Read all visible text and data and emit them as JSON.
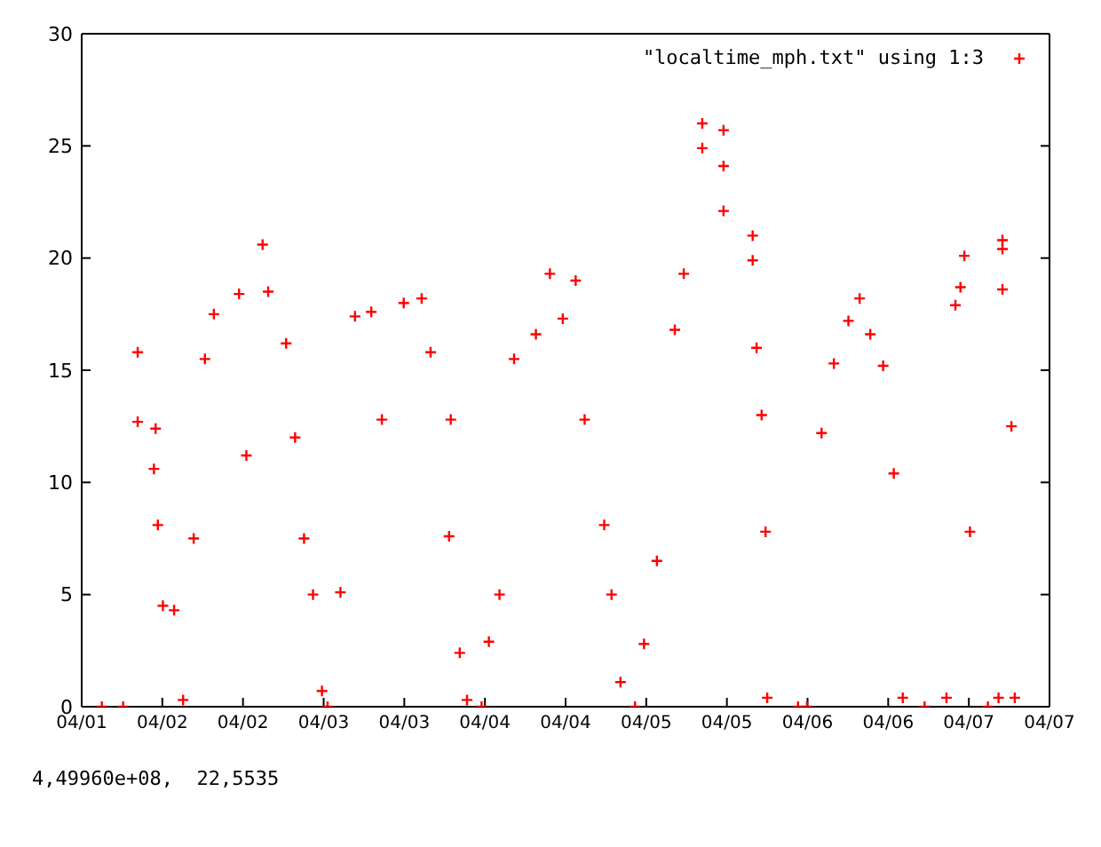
{
  "chart_data": {
    "type": "scatter",
    "x": [
      "--04-01T15:00",
      "--04-01T18:10",
      "--04-01T20:20",
      "--04-01T20:20",
      "--04-01T22:45",
      "--04-01T23:00",
      "--04-01T23:20",
      "--04-02T00:05",
      "--04-02T01:45",
      "--04-02T03:05",
      "--04-02T04:40",
      "--04-02T06:20",
      "--04-02T07:40",
      "--04-02T11:25",
      "--04-02T12:30",
      "--04-02T14:55",
      "--04-02T15:45",
      "--04-02T18:25",
      "--04-02T19:45",
      "--04-02T21:05",
      "--04-02T22:25",
      "--04-02T23:45",
      "--04-03T00:35",
      "--04-03T02:30",
      "--04-03T04:40",
      "--04-03T07:05",
      "--04-03T08:40",
      "--04-03T11:55",
      "--04-03T14:35",
      "--04-03T15:55",
      "--04-03T18:40",
      "--04-03T18:55",
      "--04-03T20:15",
      "--04-03T21:20",
      "--04-03T23:30",
      "--04-04T00:35",
      "--04-04T02:10",
      "--04-04T04:20",
      "--04-04T07:35",
      "--04-04T09:40",
      "--04-04T11:35",
      "--04-04T13:30",
      "--04-04T14:50",
      "--04-04T17:45",
      "--04-04T18:50",
      "--04-04T20:10",
      "--04-04T22:20",
      "--04-04T23:40",
      "--04-05T01:35",
      "--04-05T04:15",
      "--04-05T05:35",
      "--04-05T08:20",
      "--04-05T08:20",
      "--04-05T11:30",
      "--04-05T11:30",
      "--04-05T11:30",
      "--04-05T15:50",
      "--04-05T15:50",
      "--04-05T16:25",
      "--04-05T17:10",
      "--04-05T17:45",
      "--04-05T18:00",
      "--04-05T22:35",
      "--04-05T23:55",
      "--04-06T02:05",
      "--04-06T03:55",
      "--04-06T06:05",
      "--04-06T07:45",
      "--04-06T09:20",
      "--04-06T11:15",
      "--04-06T12:50",
      "--04-06T14:10",
      "--04-06T17:25",
      "--04-06T20:40",
      "--04-06T22:00",
      "--04-06T22:45",
      "--04-06T23:20",
      "--04-07T00:10",
      "--04-07T02:50",
      "--04-07T04:25",
      "--04-07T05:00",
      "--04-07T05:00",
      "--04-07T05:00",
      "--04-07T06:20",
      "--04-07T06:50"
    ],
    "series": [
      {
        "name": "\"localtime_mph.txt\" using 1:3",
        "color": "#ff0000",
        "values": [
          0,
          0,
          15.8,
          12.7,
          10.6,
          12.4,
          8.1,
          4.5,
          4.3,
          0.3,
          7.5,
          15.5,
          17.5,
          18.4,
          11.2,
          20.6,
          18.5,
          16.2,
          12.0,
          7.5,
          5,
          0.7,
          0,
          5.1,
          17.4,
          17.6,
          12.8,
          18,
          18.2,
          15.8,
          7.6,
          12.8,
          2.4,
          0.3,
          0,
          2.9,
          5,
          15.5,
          16.6,
          19.3,
          17.3,
          19,
          12.8,
          8.1,
          5,
          1.1,
          0,
          2.8,
          6.5,
          16.8,
          19.3,
          26.0,
          24.9,
          25.7,
          24.1,
          22.1,
          21,
          19.9,
          16,
          13,
          7.8,
          0.4,
          0,
          0,
          12.2,
          15.3,
          17.2,
          18.2,
          16.6,
          15.2,
          10.4,
          0.4,
          0,
          0.4,
          17.9,
          18.7,
          20.1,
          7.8,
          0,
          0.4,
          20.8,
          20.4,
          18.6,
          12.5,
          0.4
        ]
      }
    ],
    "xlim": [
      "--04-01T12:00",
      "--04-07T12:00"
    ],
    "xticks": [
      {
        "value": "--04-01T12:00",
        "label": "04/01"
      },
      {
        "value": "--04-02T00:00",
        "label": "04/02"
      },
      {
        "value": "--04-02T12:00",
        "label": "04/02"
      },
      {
        "value": "--04-03T00:00",
        "label": "04/03"
      },
      {
        "value": "--04-03T12:00",
        "label": "04/03"
      },
      {
        "value": "--04-04T00:00",
        "label": "04/04"
      },
      {
        "value": "--04-04T12:00",
        "label": "04/04"
      },
      {
        "value": "--04-05T00:00",
        "label": "04/05"
      },
      {
        "value": "--04-05T12:00",
        "label": "04/05"
      },
      {
        "value": "--04-06T00:00",
        "label": "04/06"
      },
      {
        "value": "--04-06T12:00",
        "label": "04/06"
      },
      {
        "value": "--04-07T00:00",
        "label": "04/07"
      },
      {
        "value": "--04-07T12:00",
        "label": "04/07"
      }
    ],
    "ylim": [
      0,
      30
    ],
    "yticks": [
      0,
      5,
      10,
      15,
      20,
      25,
      30
    ],
    "marker": "cross",
    "legend": "top right",
    "annotations": [
      "4,49960e+08,  22,5535"
    ]
  }
}
